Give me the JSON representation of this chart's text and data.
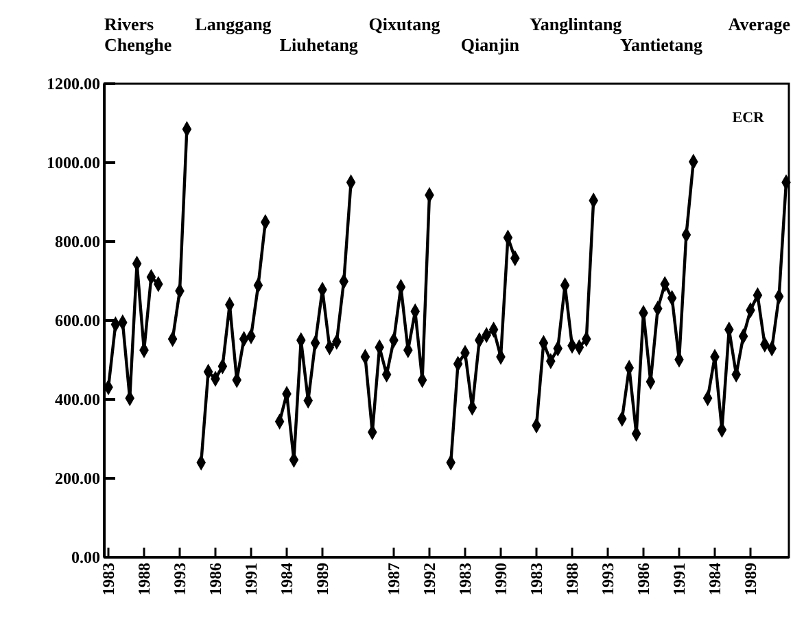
{
  "chart_data": {
    "type": "line",
    "annotations": [
      "ECR",
      "Rivers",
      "Chenghe",
      "Langgang",
      "Liuhetang",
      "Qixutang",
      "Qianjin",
      "Yanglintang",
      "Yantietang",
      "Average"
    ],
    "categories": [
      "1983",
      null,
      null,
      null,
      null,
      "1988",
      null,
      null,
      null,
      null,
      "1993",
      null,
      null,
      null,
      null,
      "1986",
      null,
      null,
      null,
      null,
      "1991",
      null,
      null,
      null,
      null,
      "1984",
      null,
      null,
      null,
      null,
      "1989",
      null,
      null,
      null,
      null,
      null,
      null,
      null,
      null,
      null,
      "1987",
      null,
      null,
      null,
      null,
      "1992",
      null,
      null,
      null,
      null,
      "1983",
      null,
      null,
      null,
      null,
      "1990",
      null,
      null,
      null,
      null,
      "1983",
      null,
      null,
      null,
      null,
      "1988",
      null,
      null,
      null,
      null,
      "1993",
      null,
      null,
      null,
      null,
      "1986",
      null,
      null,
      null,
      null,
      "1991",
      null,
      null,
      null,
      null,
      "1984",
      null,
      null,
      null,
      null,
      "1989",
      null,
      null,
      null,
      null,
      null
    ],
    "series": [
      {
        "color": "#000000",
        "values": [
          431,
          590,
          595,
          403,
          744,
          525,
          710,
          692,
          null,
          553,
          675,
          1085,
          null,
          240,
          470,
          452,
          484,
          640,
          449,
          553,
          560,
          689,
          849,
          null,
          344,
          414,
          247,
          550,
          397,
          543,
          678,
          532,
          546,
          699,
          950,
          null,
          508,
          317,
          532,
          463,
          550,
          685,
          525,
          623,
          449,
          918,
          null,
          null,
          240,
          490,
          518,
          379,
          550,
          563,
          577,
          508,
          810,
          758,
          null,
          null,
          334,
          543,
          497,
          529,
          689,
          536,
          532,
          553,
          904,
          null,
          null,
          null,
          351,
          480,
          313,
          619,
          445,
          630,
          692,
          657,
          501,
          817,
          1002,
          null,
          403,
          508,
          323,
          577,
          463,
          560,
          626,
          664,
          539,
          529,
          661,
          950
        ]
      }
    ],
    "ylim": [
      0,
      1200
    ],
    "yticks": [
      {
        "value": 0,
        "label": "0.00"
      },
      {
        "value": 200,
        "label": "200.00"
      },
      {
        "value": 400,
        "label": "400.00"
      },
      {
        "value": 600,
        "label": "600.00"
      },
      {
        "value": 800,
        "label": "800.00"
      },
      {
        "value": 1000,
        "label": "1000.00"
      },
      {
        "value": 1200,
        "label": "1200.00"
      }
    ],
    "marker": "diamond",
    "line_style": "solid",
    "grid": false
  }
}
